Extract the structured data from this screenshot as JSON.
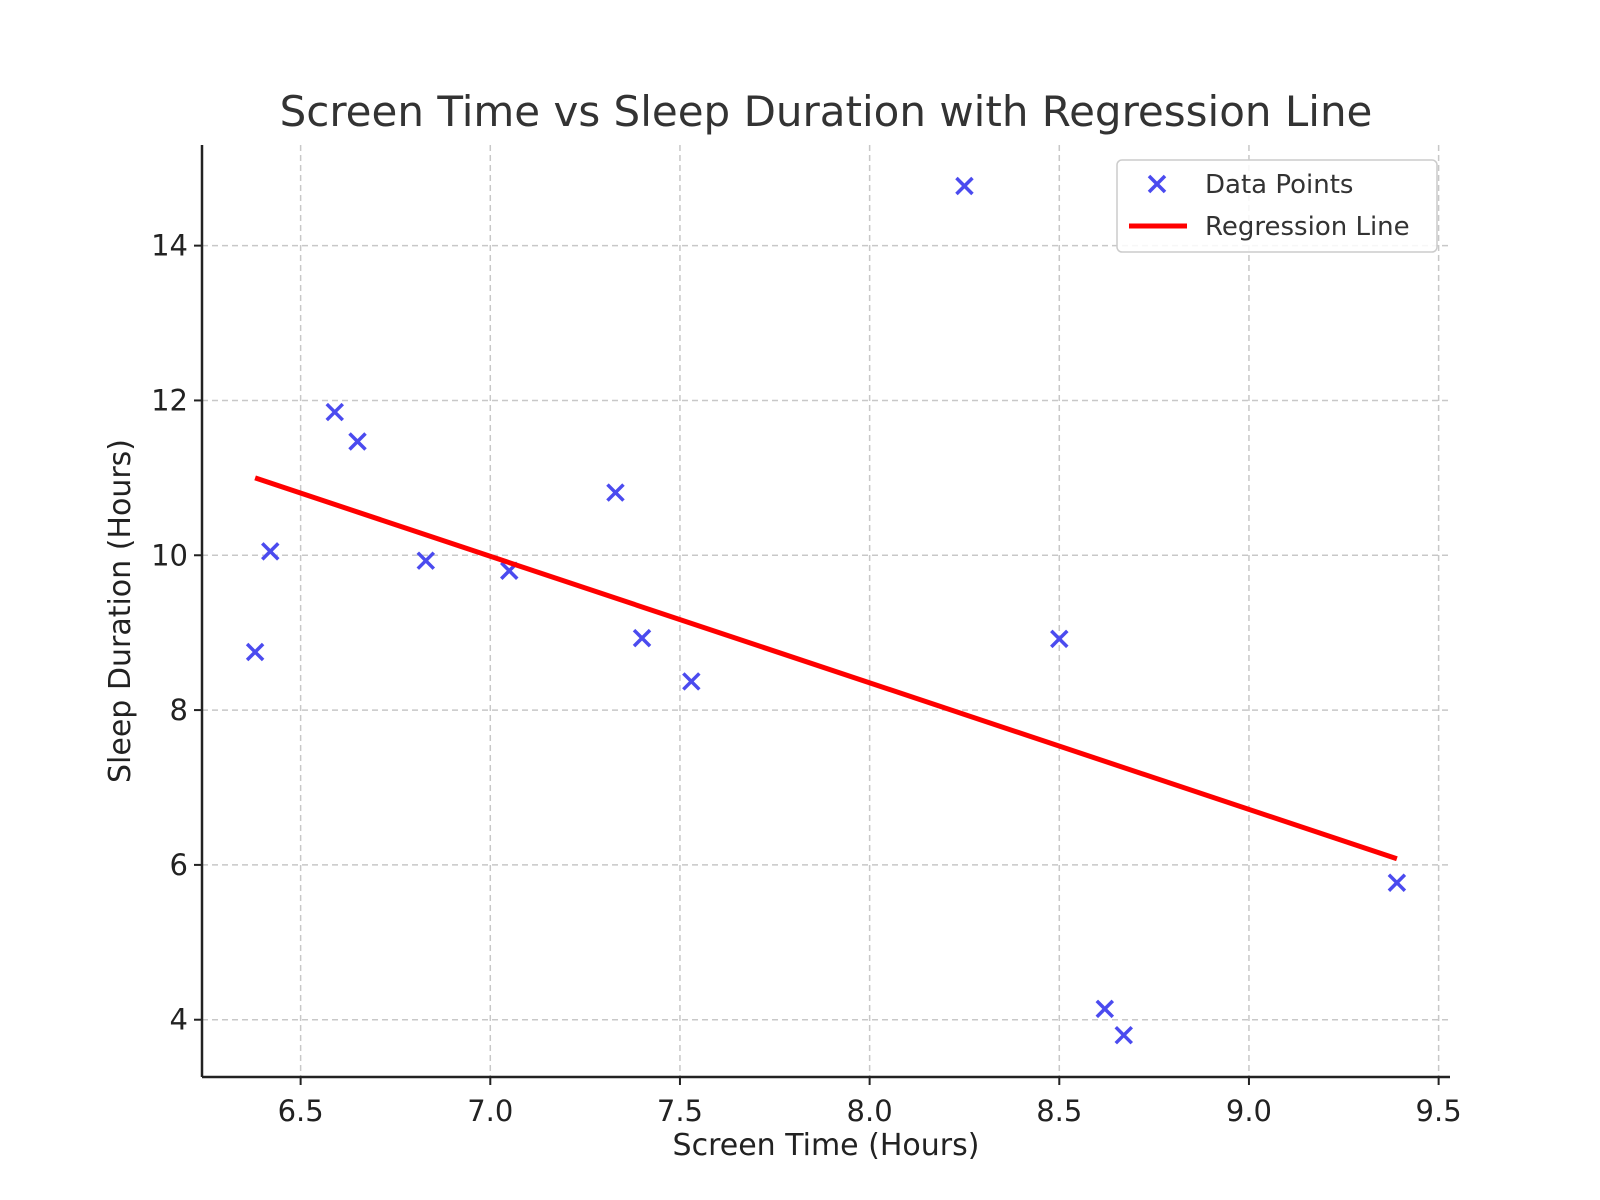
{
  "chart_data": {
    "type": "scatter",
    "title": "Screen Time vs Sleep Duration with Regression Line",
    "xlabel": "Screen Time (Hours)",
    "ylabel": "Sleep Duration (Hours)",
    "xlim": [
      6.24,
      9.53
    ],
    "ylim": [
      3.26,
      15.3
    ],
    "xticks": [
      6.5,
      7.0,
      7.5,
      8.0,
      8.5,
      9.0,
      9.5
    ],
    "xtick_labels": [
      "6.5",
      "7.0",
      "7.5",
      "8.0",
      "8.5",
      "9.0",
      "9.5"
    ],
    "yticks": [
      4,
      6,
      8,
      10,
      12,
      14
    ],
    "ytick_labels": [
      "4",
      "6",
      "8",
      "10",
      "12",
      "14"
    ],
    "grid": true,
    "legend_position": "top-right",
    "series": [
      {
        "name": "Data Points",
        "kind": "scatter",
        "marker": "x",
        "color": "#4b4bef",
        "points": [
          {
            "x": 6.38,
            "y": 8.75
          },
          {
            "x": 6.42,
            "y": 10.05
          },
          {
            "x": 6.59,
            "y": 11.85
          },
          {
            "x": 6.65,
            "y": 11.47
          },
          {
            "x": 6.83,
            "y": 9.93
          },
          {
            "x": 7.05,
            "y": 9.8
          },
          {
            "x": 7.33,
            "y": 10.81
          },
          {
            "x": 7.4,
            "y": 8.93
          },
          {
            "x": 7.53,
            "y": 8.37
          },
          {
            "x": 8.25,
            "y": 14.77
          },
          {
            "x": 8.5,
            "y": 8.92
          },
          {
            "x": 8.62,
            "y": 4.14
          },
          {
            "x": 8.67,
            "y": 3.8
          },
          {
            "x": 9.39,
            "y": 5.77
          }
        ]
      },
      {
        "name": "Regression Line",
        "kind": "line",
        "color": "#ff0000",
        "points": [
          {
            "x": 6.38,
            "y": 11.0
          },
          {
            "x": 9.39,
            "y": 6.08
          }
        ]
      }
    ]
  }
}
